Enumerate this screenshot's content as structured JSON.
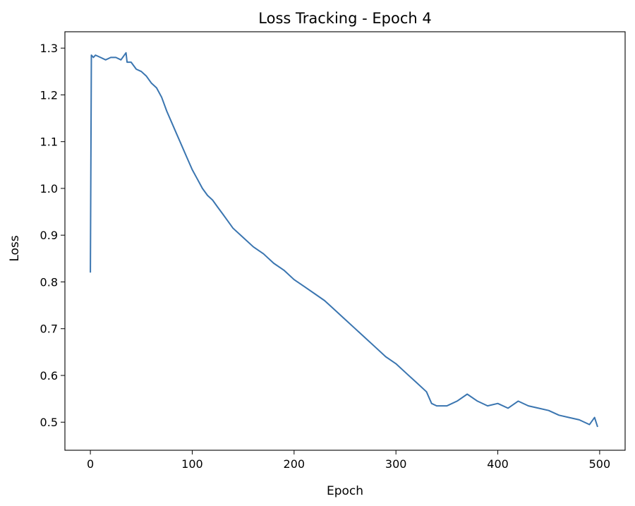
{
  "chart_data": {
    "type": "line",
    "title": "Loss Tracking - Epoch 4",
    "xlabel": "Epoch",
    "ylabel": "Loss",
    "xlim": [
      -25,
      525
    ],
    "ylim": [
      0.44,
      1.335
    ],
    "xticks": [
      0,
      100,
      200,
      300,
      400,
      500
    ],
    "yticks": [
      0.5,
      0.6,
      0.7,
      0.8,
      0.9,
      1.0,
      1.1,
      1.2,
      1.3
    ],
    "xtick_labels": [
      "0",
      "100",
      "200",
      "300",
      "400",
      "500"
    ],
    "ytick_labels": [
      "0.5",
      "0.6",
      "0.7",
      "0.8",
      "0.9",
      "1.0",
      "1.1",
      "1.2",
      "1.3"
    ],
    "grid": false,
    "line_color": "#3a75b0",
    "series": [
      {
        "x": [
          0,
          1,
          3,
          5,
          10,
          15,
          20,
          25,
          30,
          35,
          36,
          40,
          45,
          50,
          55,
          60,
          65,
          70,
          75,
          80,
          85,
          90,
          95,
          100,
          105,
          110,
          115,
          120,
          125,
          130,
          135,
          140,
          150,
          160,
          170,
          180,
          190,
          200,
          210,
          220,
          230,
          240,
          250,
          260,
          270,
          280,
          290,
          300,
          310,
          320,
          330,
          335,
          340,
          350,
          360,
          370,
          380,
          390,
          400,
          410,
          420,
          430,
          440,
          450,
          460,
          470,
          480,
          490,
          495,
          498
        ],
        "y": [
          0.82,
          1.285,
          1.28,
          1.285,
          1.28,
          1.275,
          1.28,
          1.28,
          1.275,
          1.29,
          1.27,
          1.27,
          1.255,
          1.25,
          1.24,
          1.225,
          1.215,
          1.195,
          1.165,
          1.14,
          1.115,
          1.09,
          1.065,
          1.04,
          1.02,
          1.0,
          0.985,
          0.975,
          0.96,
          0.945,
          0.93,
          0.915,
          0.895,
          0.875,
          0.86,
          0.84,
          0.825,
          0.805,
          0.79,
          0.775,
          0.76,
          0.74,
          0.72,
          0.7,
          0.68,
          0.66,
          0.64,
          0.625,
          0.605,
          0.585,
          0.565,
          0.54,
          0.535,
          0.535,
          0.545,
          0.56,
          0.545,
          0.535,
          0.54,
          0.53,
          0.545,
          0.535,
          0.53,
          0.525,
          0.515,
          0.51,
          0.505,
          0.495,
          0.51,
          0.49
        ]
      }
    ]
  }
}
